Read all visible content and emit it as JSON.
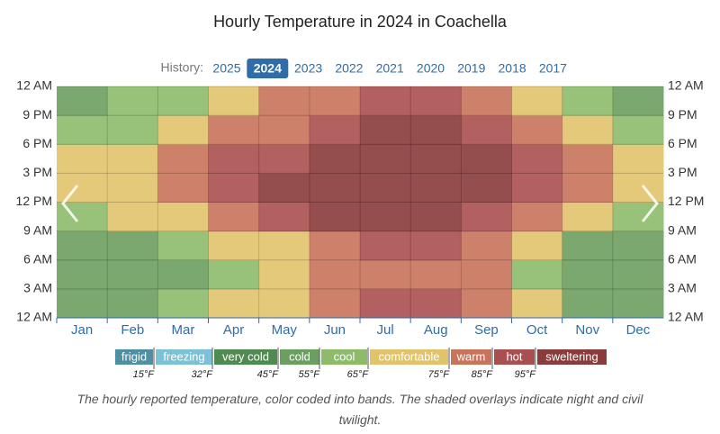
{
  "chart_data": {
    "type": "heatmap",
    "title": "Hourly Temperature in 2024 in Coachella",
    "history": {
      "label": "History:",
      "years": [
        "2025",
        "2024",
        "2023",
        "2022",
        "2021",
        "2020",
        "2019",
        "2018",
        "2017"
      ],
      "selected_index": 1
    },
    "categories": [
      "Jan",
      "Feb",
      "Mar",
      "Apr",
      "May",
      "Jun",
      "Jul",
      "Aug",
      "Sep",
      "Oct",
      "Nov",
      "Dec"
    ],
    "hour_bins": [
      0,
      3,
      6,
      9,
      12,
      15,
      18,
      21,
      24
    ],
    "values": [
      [
        49,
        46,
        49,
        64,
        72,
        69,
        60,
        53
      ],
      [
        51,
        48,
        51,
        66,
        74,
        71,
        62,
        55
      ],
      [
        57,
        54,
        57,
        73,
        82,
        79,
        69,
        62
      ],
      [
        65,
        61,
        65,
        81,
        90,
        87,
        77,
        69
      ],
      [
        72,
        68,
        72,
        88,
        97,
        94,
        84,
        76
      ],
      [
        80,
        76,
        80,
        96,
        105,
        102,
        92,
        84
      ],
      [
        86,
        83,
        86,
        100,
        108,
        105,
        96,
        90
      ],
      [
        86,
        82,
        86,
        100,
        107,
        104,
        96,
        90
      ],
      [
        79,
        76,
        79,
        94,
        102,
        99,
        90,
        83
      ],
      [
        67,
        64,
        67,
        83,
        92,
        89,
        79,
        72
      ],
      [
        54,
        51,
        54,
        70,
        78,
        75,
        65,
        58
      ],
      [
        48,
        45,
        48,
        62,
        70,
        67,
        58,
        52
      ]
    ],
    "ylim": [
      0,
      24
    ],
    "yticks": [
      {
        "value": 0,
        "label": "12 AM"
      },
      {
        "value": 3,
        "label": "3 AM"
      },
      {
        "value": 6,
        "label": "6 AM"
      },
      {
        "value": 9,
        "label": "9 AM"
      },
      {
        "value": 12,
        "label": "12 PM"
      },
      {
        "value": 15,
        "label": "3 PM"
      },
      {
        "value": 18,
        "label": "6 PM"
      },
      {
        "value": 21,
        "label": "9 PM"
      },
      {
        "value": 24,
        "label": "12 AM"
      }
    ],
    "legend": {
      "bands": [
        {
          "name": "frigid",
          "color": "#4f8fa3"
        },
        {
          "name": "freezing",
          "color": "#7cc2d6"
        },
        {
          "name": "very cold",
          "color": "#4f8a50"
        },
        {
          "name": "cold",
          "color": "#6b9f5f"
        },
        {
          "name": "cool",
          "color": "#8dbb6a"
        },
        {
          "name": "comfortable",
          "color": "#e2c36b"
        },
        {
          "name": "warm",
          "color": "#c8735b"
        },
        {
          "name": "hot",
          "color": "#aa4f4f"
        },
        {
          "name": "sweltering",
          "color": "#8a3b3b"
        }
      ],
      "thresholds": [
        {
          "value": 15,
          "label": "15°F"
        },
        {
          "value": 32,
          "label": "32°F"
        },
        {
          "value": 45,
          "label": "45°F"
        },
        {
          "value": 55,
          "label": "55°F"
        },
        {
          "value": 65,
          "label": "65°F"
        },
        {
          "value": 75,
          "label": "75°F"
        },
        {
          "value": 85,
          "label": "85°F"
        },
        {
          "value": 95,
          "label": "95°F"
        }
      ]
    },
    "caption": "The hourly reported temperature, color coded into bands. The shaded overlays indicate night and civil twilight."
  }
}
